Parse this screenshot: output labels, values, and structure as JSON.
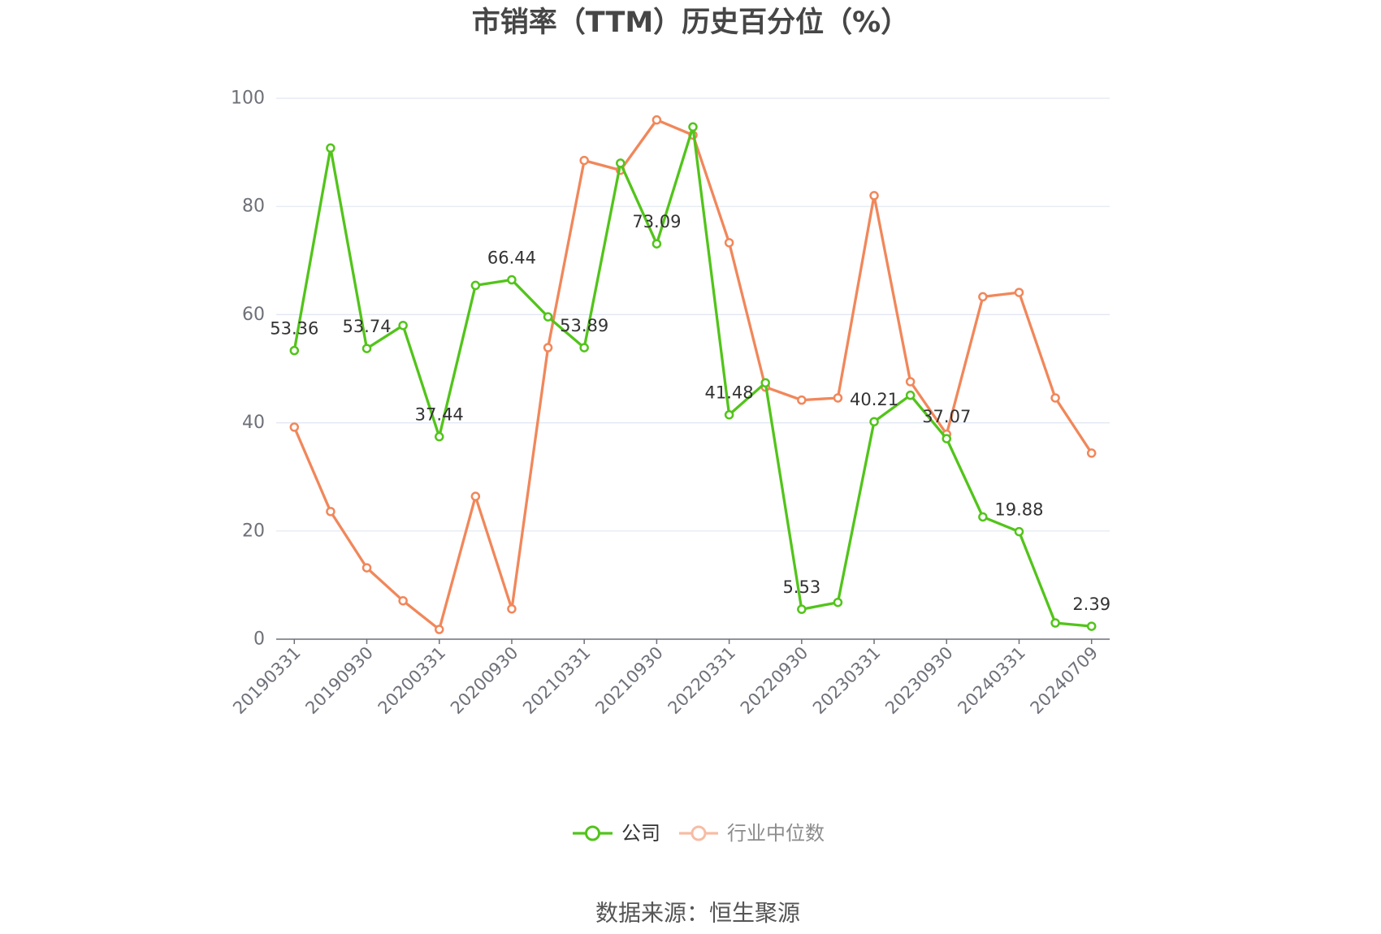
{
  "source": "数据来源：恒生聚源",
  "chart_data": {
    "type": "line",
    "title": "市销率（TTM）历史百分位（%）",
    "categories": [
      "20190331",
      "",
      "20190930",
      "",
      "20200331",
      "",
      "20200930",
      "",
      "20210331",
      "",
      "20210930",
      "",
      "20220331",
      "",
      "20220930",
      "",
      "20230331",
      "",
      "20230930",
      "",
      "20240331",
      "",
      "20240709"
    ],
    "ylim": [
      0,
      100
    ],
    "yticks": [
      0,
      20,
      40,
      60,
      80,
      100
    ],
    "grid": true,
    "legend_position": "bottom",
    "series": [
      {
        "name": "公司",
        "color": "#52c41a",
        "values": [
          53.36,
          90.8,
          53.74,
          58.0,
          37.44,
          65.4,
          66.44,
          59.6,
          53.89,
          88.0,
          73.09,
          94.7,
          41.48,
          47.4,
          5.53,
          6.8,
          40.21,
          45.1,
          37.07,
          22.6,
          19.88,
          3.0,
          2.39
        ],
        "labels": [
          "53.36",
          "",
          "53.74",
          "",
          "37.44",
          "",
          "66.44",
          "",
          "53.89",
          "",
          "73.09",
          "",
          "41.48",
          "",
          "5.53",
          "",
          "40.21",
          "",
          "37.07",
          "",
          "19.88",
          "",
          "2.39"
        ]
      },
      {
        "name": "行业中位数",
        "color": "#f1875a",
        "values": [
          39.2,
          23.6,
          13.2,
          7.1,
          1.8,
          26.4,
          5.6,
          53.9,
          88.5,
          86.7,
          96.0,
          93.2,
          73.3,
          46.6,
          44.2,
          44.6,
          82.0,
          47.6,
          37.9,
          63.3,
          64.1,
          44.6,
          34.4
        ]
      }
    ]
  }
}
